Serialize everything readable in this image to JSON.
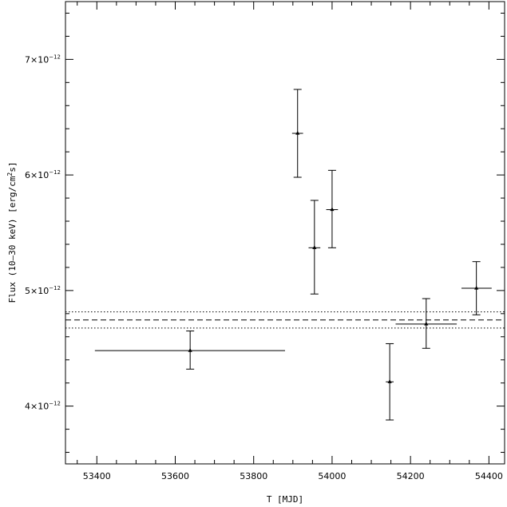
{
  "chart_data": {
    "type": "scatter",
    "title": "",
    "xlabel": "T [MJD]",
    "ylabel_parts": {
      "prefix": "Flux (10–30 keV) [erg/cm",
      "sup": "2",
      "suffix": "s]"
    },
    "xlim": [
      53320,
      54440
    ],
    "ylim": [
      3.5e-12,
      7.5e-12
    ],
    "x_ticks": [
      53400,
      53600,
      53800,
      54000,
      54200,
      54400
    ],
    "x_tick_labels": [
      "53400",
      "53600",
      "53800",
      "54000",
      "54200",
      "54400"
    ],
    "y_ticks": [
      {
        "value": 4e-12,
        "mantissa": "4",
        "base": "×10",
        "exp": "−12"
      },
      {
        "value": 5e-12,
        "mantissa": "5",
        "base": "×10",
        "exp": "−12"
      },
      {
        "value": 6e-12,
        "mantissa": "6",
        "base": "×10",
        "exp": "−12"
      },
      {
        "value": 7e-12,
        "mantissa": "7",
        "base": "×10",
        "exp": "−12"
      }
    ],
    "grid": false,
    "legend": "none",
    "points": [
      {
        "x": 53638,
        "x_lo": 53395,
        "x_hi": 53880,
        "y": 4.48e-12,
        "y_lo": 4.32e-12,
        "y_hi": 4.65e-12
      },
      {
        "x": 53912,
        "x_lo": 53898,
        "x_hi": 53926,
        "y": 6.36e-12,
        "y_lo": 5.98e-12,
        "y_hi": 6.74e-12
      },
      {
        "x": 53955,
        "x_lo": 53940,
        "x_hi": 53970,
        "y": 5.37e-12,
        "y_lo": 4.97e-12,
        "y_hi": 5.78e-12
      },
      {
        "x": 54000,
        "x_lo": 53985,
        "x_hi": 54015,
        "y": 5.7e-12,
        "y_lo": 5.37e-12,
        "y_hi": 6.04e-12
      },
      {
        "x": 54147,
        "x_lo": 54137,
        "x_hi": 54157,
        "y": 4.21e-12,
        "y_lo": 3.88e-12,
        "y_hi": 4.54e-12
      },
      {
        "x": 54240,
        "x_lo": 54162,
        "x_hi": 54318,
        "y": 4.71e-12,
        "y_lo": 4.5e-12,
        "y_hi": 4.93e-12
      },
      {
        "x": 54368,
        "x_lo": 54330,
        "x_hi": 54407,
        "y": 5.02e-12,
        "y_lo": 4.79e-12,
        "y_hi": 5.25e-12
      }
    ],
    "reference_lines": [
      {
        "y": 4.745e-12,
        "style": "dashed"
      },
      {
        "y": 4.815e-12,
        "style": "dotted"
      },
      {
        "y": 4.675e-12,
        "style": "dotted"
      }
    ],
    "colors": {
      "foreground": "#000000",
      "background": "#ffffff"
    }
  }
}
